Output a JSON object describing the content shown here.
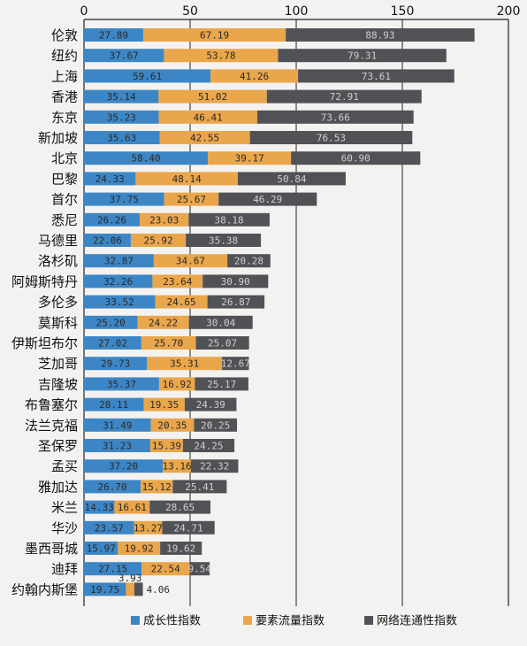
{
  "chart_data": {
    "type": "bar",
    "orientation": "horizontal",
    "stacked": true,
    "x_ticks": [
      0,
      50,
      100,
      150,
      200
    ],
    "xlim": [
      0,
      200
    ],
    "grid": "vertical",
    "legend_position": "bottom",
    "categories": [
      "伦敦",
      "纽约",
      "上海",
      "香港",
      "东京",
      "新加坡",
      "北京",
      "巴黎",
      "首尔",
      "悉尼",
      "马德里",
      "洛杉矶",
      "阿姆斯特丹",
      "多伦多",
      "莫斯科",
      "伊斯坦布尔",
      "芝加哥",
      "吉隆坡",
      "布鲁塞尔",
      "法兰克福",
      "圣保罗",
      "孟买",
      "雅加达",
      "米兰",
      "华沙",
      "墨西哥城",
      "迪拜",
      "约翰内斯堡"
    ],
    "series": [
      {
        "name": "成长性指数",
        "color": "#3d86c6",
        "values": [
          27.89,
          37.67,
          59.61,
          35.14,
          35.23,
          35.63,
          58.4,
          24.33,
          37.75,
          26.26,
          22.06,
          32.87,
          32.26,
          33.52,
          25.2,
          27.02,
          29.73,
          35.37,
          28.11,
          31.49,
          31.23,
          37.2,
          26.7,
          14.33,
          23.57,
          15.97,
          27.15,
          19.75
        ],
        "labels": [
          "27.89",
          "37.67",
          "59.61",
          "35.14",
          "35.23",
          "35.63",
          "58.40",
          "24.33",
          "37.75",
          "26.26",
          "22.06",
          "32.87",
          "32.26",
          "33.52",
          "25.20",
          "27.02",
          "29.73",
          "35.37",
          "28.11",
          "31.49",
          "31.23",
          "37.20",
          "26.70",
          "14.33",
          "23.57",
          "15.97",
          "27.15",
          "19.75"
        ]
      },
      {
        "name": "要素流量指数",
        "color": "#eaa64a",
        "values": [
          67.19,
          53.78,
          41.26,
          51.02,
          46.41,
          42.55,
          39.17,
          48.14,
          25.67,
          23.03,
          25.92,
          34.67,
          23.64,
          24.65,
          24.22,
          25.7,
          35.31,
          16.92,
          19.35,
          20.35,
          15.39,
          13.16,
          15.12,
          16.61,
          13.27,
          19.92,
          22.54,
          3.93
        ],
        "labels": [
          "67.19",
          "53.78",
          "41.26",
          "51.02",
          "46.41",
          "42.55",
          "39.17",
          "48.14",
          "25.67",
          "23.03",
          "25.92",
          "34.67",
          "23.64",
          "24.65",
          "24.22",
          "25.70",
          "35.31",
          "16.92",
          "19.35",
          "20.35",
          "15.39",
          "13.16",
          "15.12",
          "16.61",
          "13.27",
          "19.92",
          "22.54",
          "3.93"
        ]
      },
      {
        "name": "网络连通性指数",
        "color": "#505256",
        "values": [
          88.93,
          79.31,
          73.61,
          72.91,
          73.66,
          76.53,
          60.9,
          50.84,
          46.29,
          38.18,
          35.38,
          20.28,
          30.9,
          26.87,
          30.04,
          25.07,
          12.67,
          25.17,
          24.39,
          20.25,
          24.25,
          22.32,
          25.41,
          28.65,
          24.71,
          19.62,
          9.54,
          4.06
        ],
        "labels": [
          "88.93",
          "79.31",
          "73.61",
          "72.91",
          "73.66",
          "76.53",
          "60.90",
          "50.84",
          "46.29",
          "38.18",
          "35.38",
          "20.28",
          "30.90",
          "26.87",
          "30.04",
          "25.07",
          "12.67",
          "25.17",
          "24.39",
          "20.25",
          "24.25",
          "22.32",
          "25.41",
          "28.65",
          "24.71",
          "19.62",
          "9.54",
          "4.06"
        ]
      }
    ]
  }
}
